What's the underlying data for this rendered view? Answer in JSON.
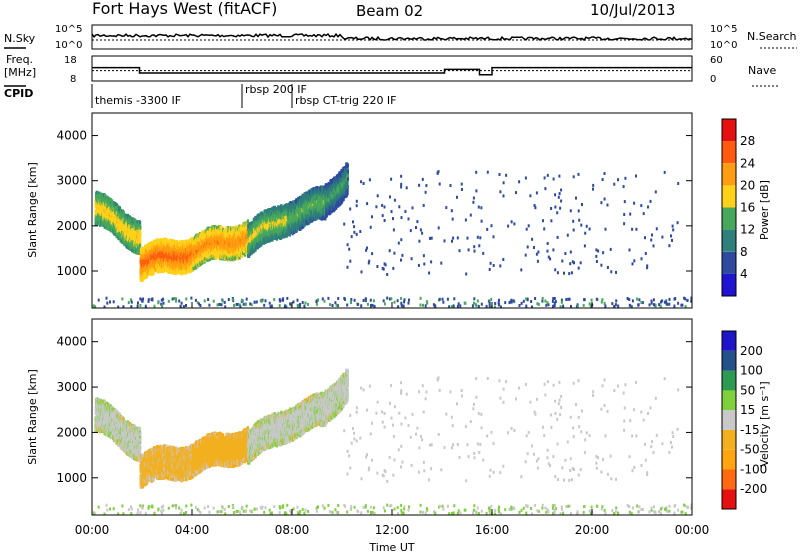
{
  "header": {
    "station": "Fort Hays West (fitACF)",
    "beam": "Beam 02",
    "date": "10/Jul/2013"
  },
  "summary": {
    "nsky_label": "N.Sky",
    "nsearch_label": "N.Search",
    "freq_label_line1": "Freq.",
    "freq_label_line2": "[MHz]",
    "nave_label": "Nave",
    "cpid_label": "CPID",
    "nsky_ticks": [
      "10^5",
      "10^0"
    ],
    "freq_ticks": [
      "18",
      "8"
    ],
    "nave_ticks": [
      "60",
      "0"
    ]
  },
  "cpid": {
    "segments": [
      {
        "label": "themis -3300 IF",
        "start_hour": 0
      },
      {
        "label": "rbsp 200 IF",
        "start_hour": 6
      },
      {
        "label": "rbsp CT-trig 220 IF",
        "start_hour": 8
      }
    ]
  },
  "axes": {
    "xlabel": "Time UT",
    "ylabel": "Slant Range [km]",
    "x_ticks": [
      "00:00",
      "04:00",
      "08:00",
      "12:00",
      "16:00",
      "20:00",
      "00:00"
    ],
    "y_ticks": [
      "1000",
      "2000",
      "3000",
      "4000"
    ]
  },
  "power_scale": {
    "label": "Power [dB]",
    "ticks": [
      "4",
      "8",
      "12",
      "16",
      "20",
      "24",
      "28"
    ]
  },
  "velocity_scale": {
    "label": "Velocity [m s⁻¹]",
    "ticks": [
      "-200",
      "-100",
      "-50",
      "-15",
      "15",
      "50",
      "100",
      "200"
    ]
  },
  "chart_data": {
    "type": "heatmap",
    "x_range_hours": [
      0,
      24
    ],
    "y_range_km": [
      180,
      4500
    ],
    "frequency_MHz": [
      [
        0,
        13.5
      ],
      [
        1.9,
        10.5
      ],
      [
        14.0,
        10.5
      ],
      [
        14.1,
        12.5
      ],
      [
        15.4,
        12.5
      ],
      [
        15.5,
        9.5
      ],
      [
        15.9,
        9.5
      ],
      [
        16.0,
        13.5
      ],
      [
        24,
        13.5
      ]
    ],
    "nave": [
      [
        0,
        25
      ],
      [
        24,
        25
      ]
    ],
    "echo_bands": [
      {
        "t0": 0.1,
        "t1": 1.9,
        "r0": 2350,
        "r1": 1750,
        "power_dB": 16,
        "velocity": 5
      },
      {
        "t0": 1.9,
        "t1": 4.0,
        "r0": 1150,
        "r1": 1400,
        "power_dB": 22,
        "velocity": -25
      },
      {
        "t0": 4.0,
        "t1": 6.2,
        "r0": 1400,
        "r1": 1750,
        "power_dB": 20,
        "velocity": -30
      },
      {
        "t0": 6.2,
        "t1": 7.8,
        "r0": 1650,
        "r1": 2200,
        "power_dB": 14,
        "velocity": 5
      },
      {
        "t0": 7.8,
        "t1": 9.3,
        "r0": 2200,
        "r1": 2450,
        "power_dB": 12,
        "velocity": 5
      },
      {
        "t0": 9.3,
        "t1": 10.2,
        "r0": 2500,
        "r1": 3100,
        "power_dB": 10,
        "velocity": 5
      }
    ]
  }
}
